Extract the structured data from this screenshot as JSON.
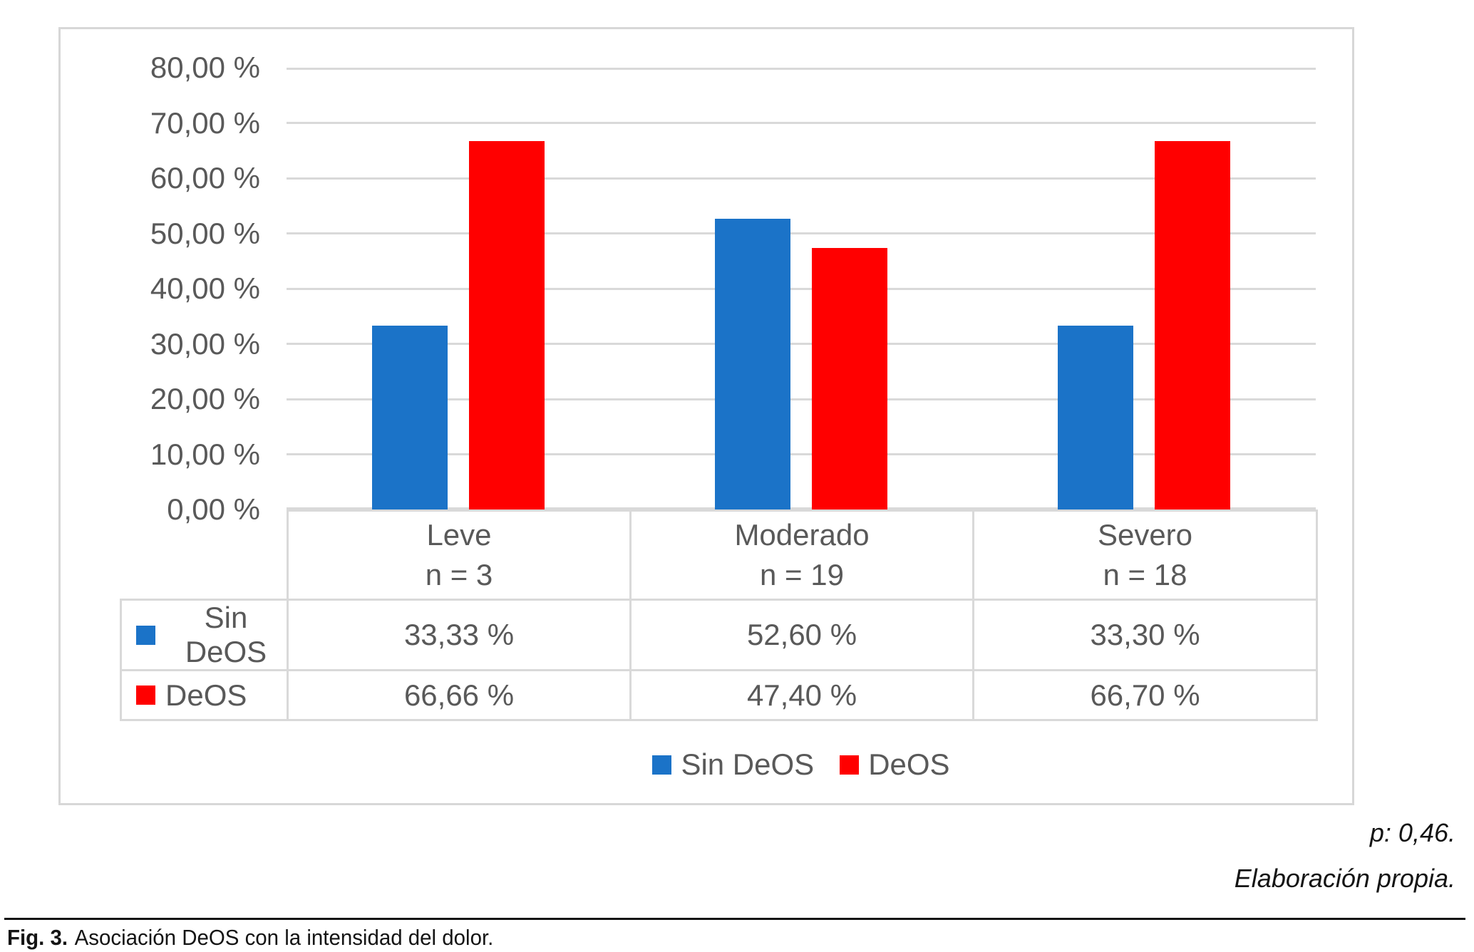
{
  "figure": {
    "notes": {
      "p_value": "p: 0,46.",
      "source": "Elaboración propia."
    },
    "caption": {
      "label": "Fig. 3.",
      "text": "Asociación DeOS con la intensidad del dolor."
    }
  },
  "chart_data": {
    "type": "bar",
    "title": "",
    "categories": [
      "Leve",
      "Moderado",
      "Severo"
    ],
    "category_counts": [
      "n = 3",
      "n = 19",
      "n = 18"
    ],
    "series": [
      {
        "name": "Sin DeOS",
        "color": "#1B73C8",
        "values": [
          33.33,
          52.6,
          33.3
        ],
        "value_labels": [
          "33,33 %",
          "52,60 %",
          "33,30 %"
        ]
      },
      {
        "name": "DeOS",
        "color": "#FF0000",
        "values": [
          66.66,
          47.4,
          66.7
        ],
        "value_labels": [
          "66,66 %",
          "47,40 %",
          "66,70 %"
        ]
      }
    ],
    "y_axis": {
      "min": 0,
      "max": 80,
      "step": 10,
      "tick_labels": [
        "0,00 %",
        "10,00 %",
        "20,00 %",
        "30,00 %",
        "40,00 %",
        "50,00 %",
        "60,00 %",
        "70,00 %",
        "80,00 %"
      ]
    },
    "grid": true,
    "legend_position": "bottom",
    "data_table_shown": true,
    "colors": {
      "text": "#595959",
      "gridline": "#D9D9D9",
      "box_border": "#D7D7D7"
    }
  }
}
